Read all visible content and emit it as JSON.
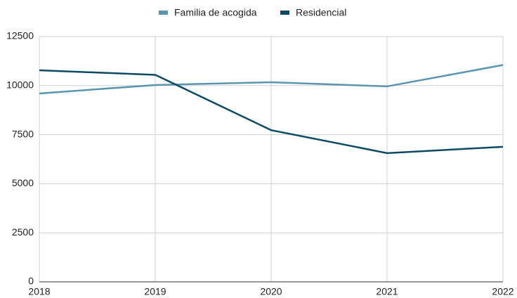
{
  "chart_data": {
    "type": "line",
    "x": [
      2018,
      2019,
      2020,
      2021,
      2022
    ],
    "series": [
      {
        "name": "Familia de acogida",
        "color": "#5b95b0",
        "values": [
          9600,
          10030,
          10170,
          9960,
          11050
        ]
      },
      {
        "name": "Residencial",
        "color": "#0d4a63",
        "values": [
          10780,
          10550,
          7730,
          6560,
          6880
        ]
      }
    ],
    "xlim": [
      2018,
      2022
    ],
    "xticks": [
      2018,
      2019,
      2020,
      2021,
      2022
    ],
    "ylim": [
      0,
      12500
    ],
    "yticks": [
      0,
      2500,
      5000,
      7500,
      10000,
      12500
    ],
    "grid": true,
    "legend": "top"
  }
}
